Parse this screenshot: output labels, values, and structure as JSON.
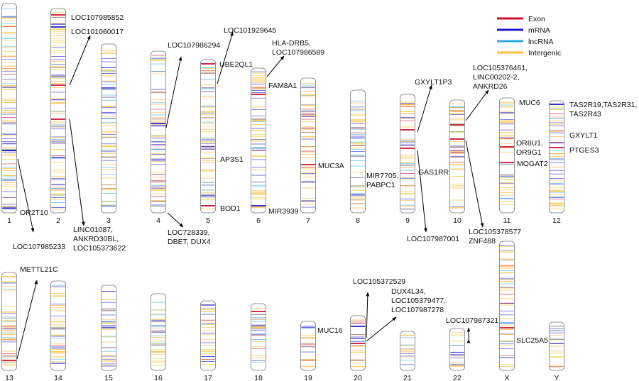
{
  "legend": [
    {
      "key": "exon",
      "label": "Exon",
      "color": "#c8102e"
    },
    {
      "key": "mrna",
      "label": "mRNA",
      "color": "#1a1ac8"
    },
    {
      "key": "lncrna",
      "label": "lncRNA",
      "color": "#29a9e0"
    },
    {
      "key": "intergenic",
      "label": "Intergenic",
      "color": "#f7c142"
    }
  ],
  "chromosomes": [
    {
      "id": "c1",
      "label": "1"
    },
    {
      "id": "c2",
      "label": "2"
    },
    {
      "id": "c3",
      "label": "3"
    },
    {
      "id": "c4",
      "label": "4"
    },
    {
      "id": "c5",
      "label": "5"
    },
    {
      "id": "c6",
      "label": "6"
    },
    {
      "id": "c7",
      "label": "7"
    },
    {
      "id": "c8",
      "label": "8"
    },
    {
      "id": "c9",
      "label": "9"
    },
    {
      "id": "c10",
      "label": "10"
    },
    {
      "id": "c11",
      "label": "11"
    },
    {
      "id": "c12",
      "label": "12"
    },
    {
      "id": "c13",
      "label": "13"
    },
    {
      "id": "c14",
      "label": "14"
    },
    {
      "id": "c15",
      "label": "15"
    },
    {
      "id": "c16",
      "label": "16"
    },
    {
      "id": "c17",
      "label": "17"
    },
    {
      "id": "c18",
      "label": "18"
    },
    {
      "id": "c19",
      "label": "19"
    },
    {
      "id": "c20",
      "label": "20"
    },
    {
      "id": "c21",
      "label": "21"
    },
    {
      "id": "c22",
      "label": "22"
    },
    {
      "id": "cX",
      "label": "X"
    },
    {
      "id": "cY",
      "label": "Y"
    }
  ],
  "annotations": {
    "a1a": [
      "OR2T10"
    ],
    "a1b": [
      "LOC107985233"
    ],
    "a2a": [
      "LOC107985852"
    ],
    "a2b": [
      "LOC101060017"
    ],
    "a2c": [
      "LINC01087,",
      "ANKRD30BL,",
      "LOC105373622"
    ],
    "a4a": [
      "LOC107986294"
    ],
    "a4b": [
      "LOC728339,",
      "DBET, DUX4"
    ],
    "a5a": [
      "LOC101929645"
    ],
    "a5b": [
      "UBE2QL1"
    ],
    "a5c": [
      "AP3S1"
    ],
    "a5d": [
      "BOD1"
    ],
    "a6a": [
      "HLA-DRB5,",
      "LOC107986589"
    ],
    "a6b": [
      "FAM8A1"
    ],
    "a6c": [
      "MIR3939"
    ],
    "a7a": [
      "MUC3A"
    ],
    "a8a": [
      "MIR7705,",
      "PABPC1"
    ],
    "a9a": [
      "GXYLT1P3"
    ],
    "a9b": [
      "GAS1RR"
    ],
    "a9c": [
      "LOC107987001"
    ],
    "a10a": [
      "LOC105376461,",
      "LINC00202-2,",
      "ANKRD26"
    ],
    "a10b": [
      "LOC105378577",
      "ZNF488"
    ],
    "a11a": [
      "MUC6"
    ],
    "a11b": [
      "OR8U1,",
      "OR9G1"
    ],
    "a11c": [
      "MOGAT2"
    ],
    "a12a": [
      "TAS2R19,TAS2R31,",
      "TAS2R43"
    ],
    "a12b": [
      "GXYLT1"
    ],
    "a12c": [
      "PTGES3"
    ],
    "a13a": [
      "METTL21C"
    ],
    "a19a": [
      "MUC16"
    ],
    "a20a": [
      "LOC105372529"
    ],
    "a20b": [
      "DUX4L34,",
      "LOC105379477,",
      "LOC107987278"
    ],
    "a22a": [
      "LOC107987321"
    ],
    "aXa": [
      "SLC25A5"
    ]
  }
}
